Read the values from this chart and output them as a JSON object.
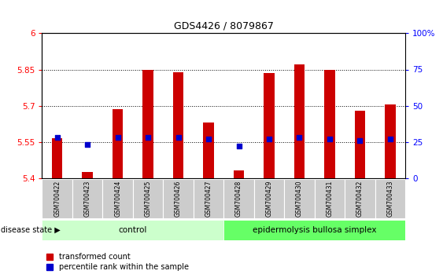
{
  "title": "GDS4426 / 8079867",
  "samples": [
    "GSM700422",
    "GSM700423",
    "GSM700424",
    "GSM700425",
    "GSM700426",
    "GSM700427",
    "GSM700428",
    "GSM700429",
    "GSM700430",
    "GSM700431",
    "GSM700432",
    "GSM700433"
  ],
  "red_values": [
    5.565,
    5.425,
    5.685,
    5.85,
    5.84,
    5.63,
    5.43,
    5.835,
    5.87,
    5.85,
    5.68,
    5.705
  ],
  "blue_percentile": [
    28,
    23,
    28,
    28,
    28,
    27,
    22,
    27,
    28,
    27,
    26,
    27
  ],
  "ylim_left": [
    5.4,
    6.0
  ],
  "ylim_right": [
    0,
    100
  ],
  "yticks_left": [
    5.4,
    5.55,
    5.7,
    5.85,
    6.0
  ],
  "yticks_right": [
    0,
    25,
    50,
    75,
    100
  ],
  "ytick_labels_left": [
    "5.4",
    "5.55",
    "5.7",
    "5.85",
    "6"
  ],
  "ytick_labels_right": [
    "0",
    "25",
    "50",
    "75",
    "100%"
  ],
  "hlines": [
    5.55,
    5.7,
    5.85
  ],
  "control_count": 6,
  "control_label": "control",
  "disease_label": "epidermolysis bullosa simplex",
  "legend_label_red": "transformed count",
  "legend_label_blue": "percentile rank within the sample",
  "disease_state_label": "disease state",
  "bar_color": "#CC0000",
  "blue_color": "#0000CC",
  "control_bg": "#CCFFCC",
  "disease_bg": "#66FF66",
  "xticklabel_bg": "#CCCCCC",
  "base_value": 5.4,
  "bar_width": 0.35,
  "blue_square_size": 18
}
